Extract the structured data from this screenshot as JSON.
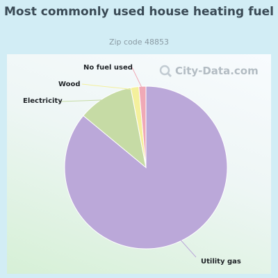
{
  "header": {
    "title": "Most commonly used house heating fuel",
    "subtitle": "Zip code 48853"
  },
  "watermark": {
    "text": "City-Data.com",
    "icon": "magnifier-icon"
  },
  "chart_data": {
    "type": "pie",
    "title": "Most commonly used house heating fuel",
    "subtitle": "Zip code 48853",
    "slices": [
      {
        "label": "Utility gas",
        "value": 86.0,
        "color": "#bba8d9"
      },
      {
        "label": "Electricity",
        "value": 11.0,
        "color": "#c6dba5"
      },
      {
        "label": "Wood",
        "value": 1.6,
        "color": "#f4f09c"
      },
      {
        "label": "No fuel used",
        "value": 1.4,
        "color": "#f0a9b6"
      }
    ]
  }
}
